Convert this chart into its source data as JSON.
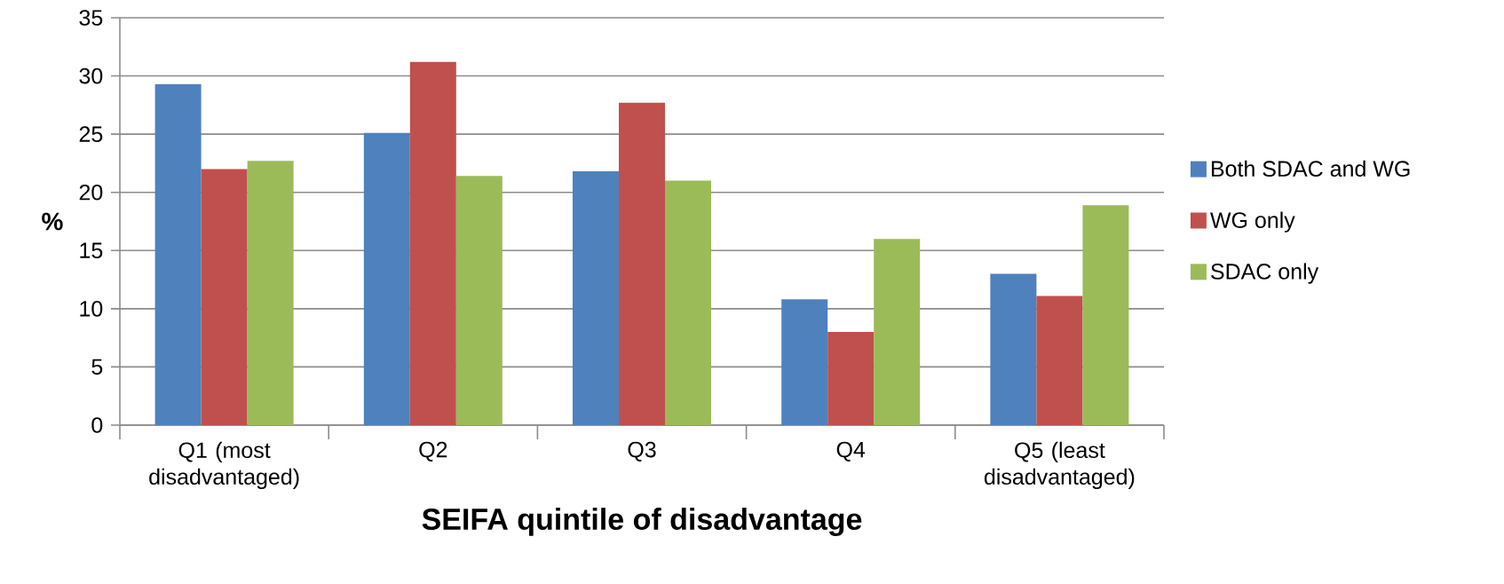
{
  "chart_data": {
    "type": "bar",
    "xlabel": "SEIFA quintile of disadvantage",
    "ylabel": "%",
    "categories": [
      "Q1 (most disadvantaged)",
      "Q2",
      "Q3",
      "Q4",
      "Q5 (least disadvantaged)"
    ],
    "series": [
      {
        "name": "Both SDAC and WG",
        "color": "#4f81bd",
        "values": [
          29.3,
          25.1,
          21.8,
          10.8,
          13.0
        ]
      },
      {
        "name": "WG only",
        "color": "#c0504d",
        "values": [
          22.0,
          31.2,
          27.7,
          8.0,
          11.1
        ]
      },
      {
        "name": "SDAC only",
        "color": "#9bbb59",
        "values": [
          22.7,
          21.4,
          21.0,
          16.0,
          18.9
        ]
      }
    ],
    "ylim": [
      0,
      35
    ],
    "yticks": [
      0,
      5,
      10,
      15,
      20,
      25,
      30,
      35
    ],
    "grid": "y",
    "legend": "right"
  }
}
